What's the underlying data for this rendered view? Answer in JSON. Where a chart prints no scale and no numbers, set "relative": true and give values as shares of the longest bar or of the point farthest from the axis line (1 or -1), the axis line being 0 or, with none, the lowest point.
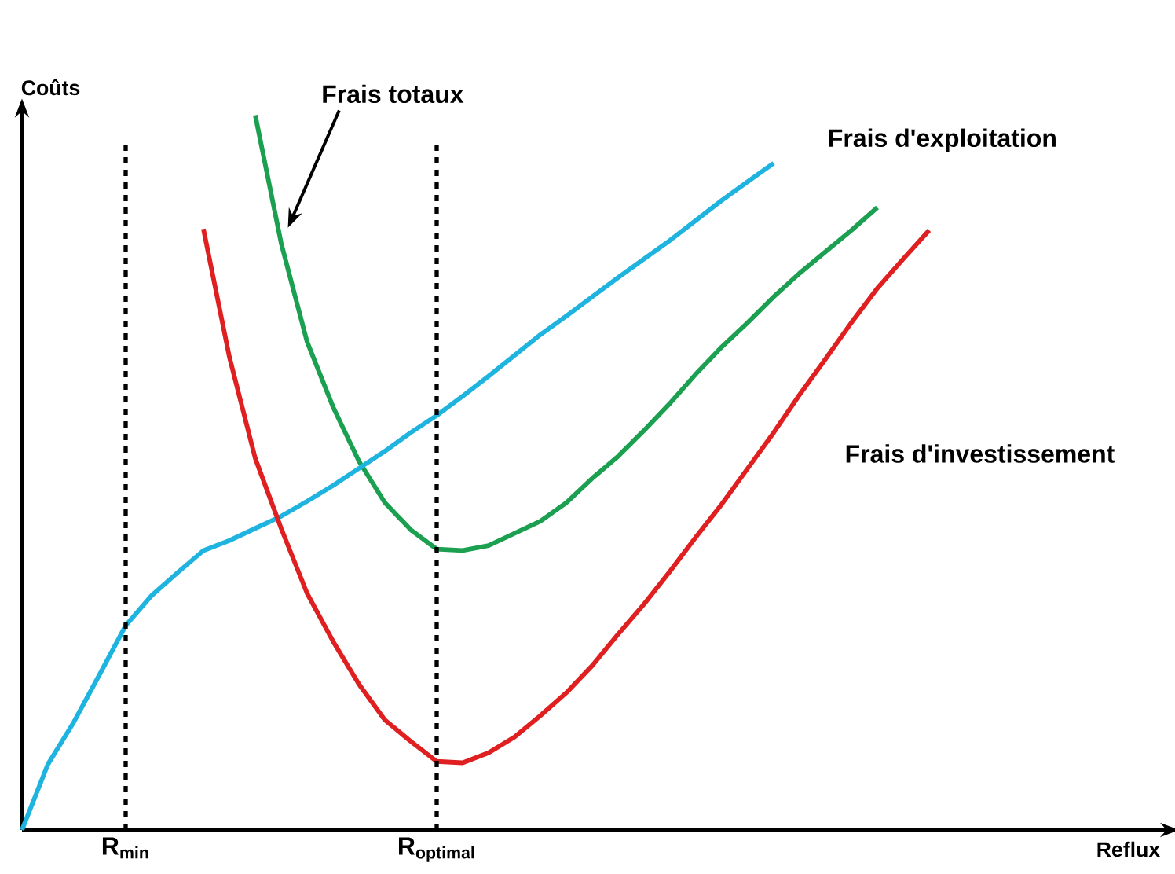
{
  "chart_data": {
    "type": "line",
    "relative": true,
    "xlabel": "Reflux",
    "ylabel": "Coûts",
    "tick_labels": "x",
    "marker": "none",
    "line_style": "solid",
    "categories": [
      null,
      null,
      null,
      null,
      "R$_{min}$",
      null,
      null,
      null,
      null,
      null,
      null,
      null,
      null,
      null,
      null,
      null,
      "R$_{optimal}$",
      null,
      null,
      null,
      null,
      null,
      null,
      null,
      null,
      null,
      null,
      null,
      null,
      null,
      null,
      null,
      null,
      null,
      null,
      null,
      null,
      null,
      null,
      null,
      null,
      null,
      null,
      null,
      null
    ],
    "series": [
      {
        "name": "Frais totaux",
        "color": "#1aa050",
        "values": [
          null,
          null,
          null,
          null,
          null,
          null,
          null,
          null,
          null,
          1.0,
          0.821,
          0.683,
          0.592,
          0.516,
          0.458,
          0.42,
          0.393,
          0.391,
          0.398,
          0.415,
          0.432,
          0.458,
          0.492,
          0.523,
          0.559,
          0.597,
          0.638,
          0.676,
          0.71,
          0.746,
          0.779,
          0.809,
          0.839,
          0.871,
          null,
          null,
          null,
          null,
          null,
          null,
          null,
          null,
          null,
          null,
          null
        ]
      },
      {
        "name": "Frais d'exploitation",
        "color": "#1fb4e0",
        "values": [
          0,
          0.092,
          0.151,
          0.218,
          0.286,
          0.328,
          0.36,
          0.391,
          0.405,
          0.422,
          0.439,
          0.46,
          0.482,
          0.506,
          0.53,
          0.556,
          0.58,
          0.607,
          0.635,
          0.664,
          0.693,
          0.719,
          0.746,
          0.773,
          0.799,
          0.825,
          0.853,
          0.881,
          0.907,
          0.933,
          null,
          null,
          null,
          null,
          null,
          null,
          null,
          null,
          null,
          null,
          null,
          null,
          null,
          null,
          null
        ]
      },
      {
        "name": "Frais d'investissement",
        "color": "#e02020",
        "values": [
          null,
          null,
          null,
          null,
          null,
          null,
          null,
          0.841,
          0.662,
          0.52,
          0.422,
          0.331,
          0.264,
          0.204,
          0.154,
          0.124,
          0.096,
          0.094,
          0.108,
          0.13,
          0.16,
          0.192,
          0.23,
          0.274,
          0.316,
          0.362,
          0.41,
          0.456,
          0.506,
          0.556,
          0.609,
          0.659,
          0.71,
          0.758,
          0.799,
          0.839,
          null,
          null,
          null,
          null,
          null,
          null,
          null,
          null,
          null
        ]
      }
    ],
    "ref_lines": [
      {
        "axis": "x",
        "value": "R$_{min}$",
        "line_style": "dashed",
        "color": "#000000"
      },
      {
        "axis": "x",
        "value": "R$_{optimal}$",
        "line_style": "dashed",
        "color": "#000000"
      }
    ]
  }
}
